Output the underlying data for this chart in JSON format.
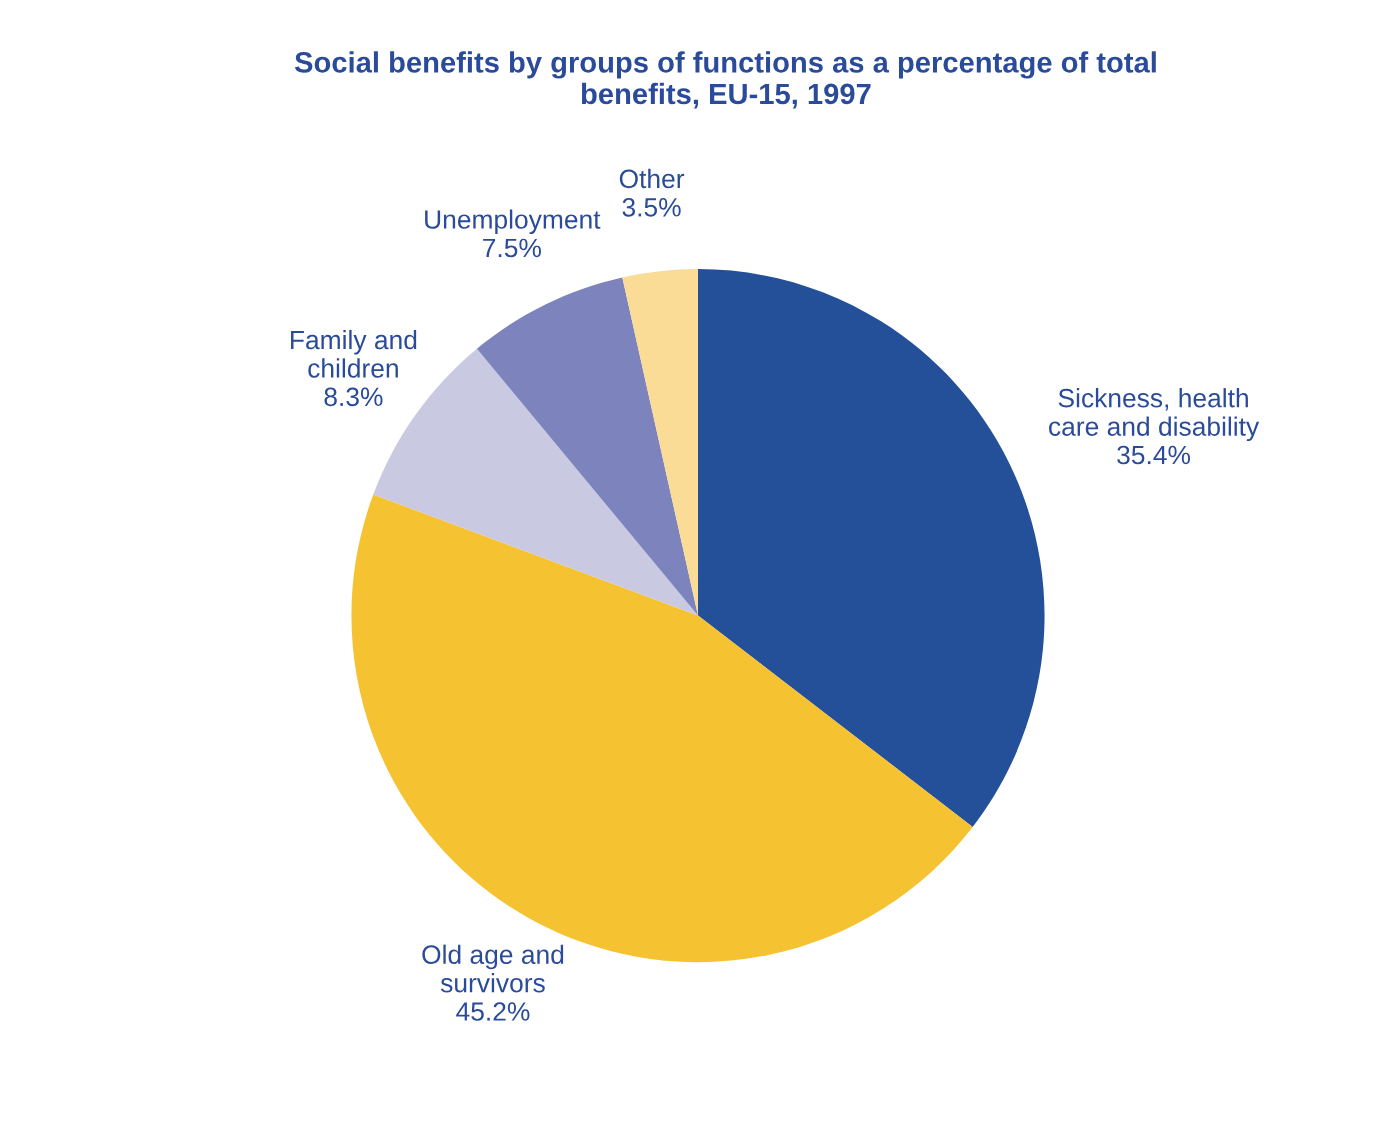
{
  "chart_data": {
    "type": "pie",
    "title": "Social benefits by groups of functions as a percentage of total\nbenefits, EU-15, 1997",
    "categories": [
      "Sickness, health\ncare and disability",
      "Old age and\nsurvivors",
      "Family and\nchildren",
      "Unemployment",
      "Other"
    ],
    "values": [
      35.4,
      45.2,
      8.3,
      7.5,
      3.5
    ],
    "value_labels": [
      "35.4%",
      "45.2%",
      "8.3%",
      "7.5%",
      "3.5%"
    ],
    "colors": [
      "#24509a",
      "#f5c232",
      "#c9c9e2",
      "#7c83bd",
      "#fadc96"
    ]
  }
}
